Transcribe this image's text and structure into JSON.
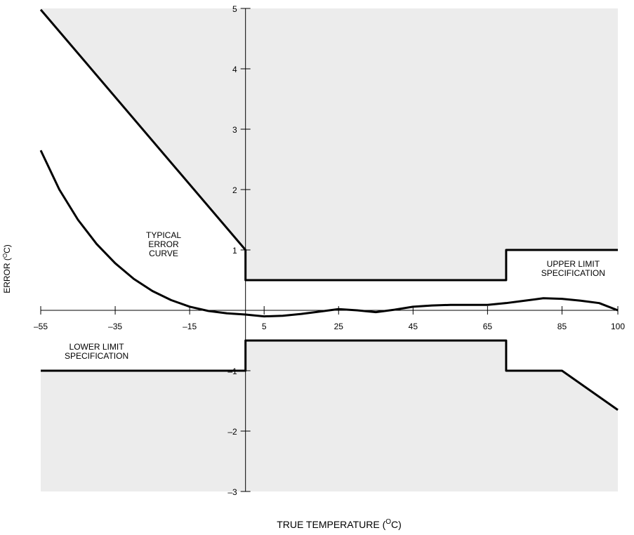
{
  "chart_data": {
    "type": "line",
    "xlabel": "TRUE TEMPERATURE (",
    "xlabel_sup": "O",
    "xlabel_suffix": "C)",
    "ylabel": "ERROR (",
    "ylabel_sup": "O",
    "ylabel_suffix": "C)",
    "xlim": [
      -55,
      100
    ],
    "ylim": [
      -3,
      5
    ],
    "x_ticks": [
      -55,
      -35,
      -15,
      5,
      25,
      45,
      65,
      85,
      100
    ],
    "x_tick_labels": [
      "–55",
      "–35",
      "–15",
      "5",
      "25",
      "45",
      "65",
      "85",
      "100"
    ],
    "y_ticks": [
      5,
      4,
      3,
      2,
      1,
      -1,
      -2,
      -3
    ],
    "y_tick_labels": [
      "5",
      "4",
      "3",
      "2",
      "1",
      "–1",
      "–2",
      "–3"
    ],
    "grid": false,
    "shading_color": "#ececec",
    "series": [
      {
        "name": "UPPER LIMIT SPECIFICATION",
        "x": [
          -55,
          0,
          0,
          70,
          70,
          100
        ],
        "y": [
          4.98,
          1.0,
          0.5,
          0.5,
          1.0,
          1.0
        ]
      },
      {
        "name": "LOWER LIMIT SPECIFICATION",
        "x": [
          -55,
          0,
          0,
          70,
          70,
          85,
          100
        ],
        "y": [
          -1.0,
          -1.0,
          -0.5,
          -0.5,
          -1.0,
          -1.0,
          -1.65
        ]
      },
      {
        "name": "TYPICAL ERROR CURVE",
        "x": [
          -55,
          -50,
          -45,
          -40,
          -35,
          -30,
          -25,
          -20,
          -15,
          -10,
          -5,
          0,
          5,
          10,
          15,
          20,
          25,
          30,
          35,
          40,
          45,
          50,
          55,
          60,
          65,
          70,
          75,
          80,
          85,
          90,
          95,
          100
        ],
        "y": [
          2.65,
          2.0,
          1.5,
          1.1,
          0.78,
          0.52,
          0.32,
          0.17,
          0.06,
          -0.01,
          -0.05,
          -0.07,
          -0.1,
          -0.09,
          -0.06,
          -0.02,
          0.02,
          0.0,
          -0.03,
          0.01,
          0.06,
          0.08,
          0.09,
          0.09,
          0.09,
          0.12,
          0.16,
          0.2,
          0.19,
          0.16,
          0.12,
          0.0
        ]
      }
    ],
    "annotations": [
      {
        "lines": [
          "TYPICAL",
          "ERROR",
          "CURVE"
        ],
        "x": -22,
        "y": 1.2,
        "anchor": "middle"
      },
      {
        "lines": [
          "UPPER LIMIT",
          "SPECIFICATION"
        ],
        "x": 88,
        "y": 0.72,
        "anchor": "middle"
      },
      {
        "lines": [
          "LOWER LIMIT",
          "SPECIFICATION"
        ],
        "x": -40,
        "y": -0.65,
        "anchor": "middle"
      }
    ]
  }
}
